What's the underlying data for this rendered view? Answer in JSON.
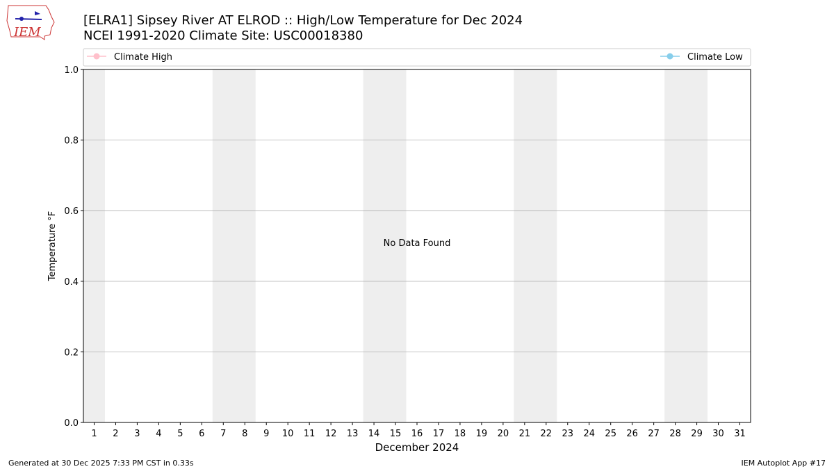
{
  "logo_text": "IEM",
  "footer": {
    "left": "Generated at 30 Dec 2025 7:33 PM CST in 0.33s",
    "right": "IEM Autoplot App #17"
  },
  "chart_data": {
    "type": "line",
    "title": "[ELRA1] Sipsey River  AT ELROD :: High/Low Temperature for Dec 2024",
    "subtitle": "NCEI 1991-2020 Climate Site: USC00018380",
    "xlabel": "December 2024",
    "ylabel": "Temperature °F",
    "annotation": "No Data Found",
    "x": [],
    "series": [
      {
        "name": "Climate High",
        "color": "#ffc0cb",
        "values": []
      },
      {
        "name": "Climate Low",
        "color": "#87ceeb",
        "values": []
      }
    ],
    "xlim": [
      0.5,
      31.5
    ],
    "xticks": [
      1,
      2,
      3,
      4,
      5,
      6,
      7,
      8,
      9,
      10,
      11,
      12,
      13,
      14,
      15,
      16,
      17,
      18,
      19,
      20,
      21,
      22,
      23,
      24,
      25,
      26,
      27,
      28,
      29,
      30,
      31
    ],
    "ylim": [
      0,
      1
    ],
    "yticks": [
      {
        "value": 0,
        "label": "0.0"
      },
      {
        "value": 0.2,
        "label": "0.2"
      },
      {
        "value": 0.4,
        "label": "0.4"
      },
      {
        "value": 0.6,
        "label": "0.6"
      },
      {
        "value": 0.8,
        "label": "0.8"
      },
      {
        "value": 1,
        "label": "1.0"
      }
    ],
    "shaded_spans": [
      [
        0.5,
        1.5
      ],
      [
        6.5,
        8.5
      ],
      [
        13.5,
        15.5
      ],
      [
        20.5,
        22.5
      ],
      [
        27.5,
        29.5
      ]
    ],
    "shade_color": "#eeeeee",
    "grid": true
  }
}
